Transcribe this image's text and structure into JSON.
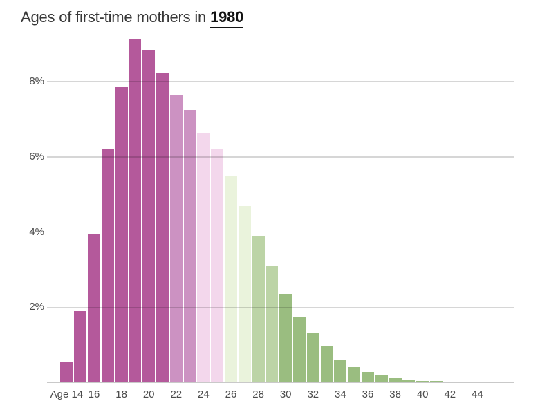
{
  "title": {
    "prefix": "Ages of first-time mothers in",
    "year": "1980"
  },
  "colors": {
    "background": "#ffffff",
    "title_text": "#383838",
    "year_text": "#131313",
    "axis_text": "#4b4b4b",
    "gridline": "#d6d6d6",
    "baseline": "#c9c9c9"
  },
  "chart_data": {
    "type": "bar",
    "title": "Ages of first-time mothers in 1980",
    "x_axis_name": "Age",
    "ylim": [
      0,
      9.2
    ],
    "grid": true,
    "legend": false,
    "y_ticks": [
      {
        "value": 2,
        "label": "2%"
      },
      {
        "value": 4,
        "label": "4%"
      },
      {
        "value": 6,
        "label": "6%"
      },
      {
        "value": 8,
        "label": "8%"
      }
    ],
    "x_ticks": [
      {
        "age": 14,
        "label": "Age 14"
      },
      {
        "age": 16,
        "label": "16"
      },
      {
        "age": 18,
        "label": "18"
      },
      {
        "age": 20,
        "label": "20"
      },
      {
        "age": 22,
        "label": "22"
      },
      {
        "age": 24,
        "label": "24"
      },
      {
        "age": 26,
        "label": "26"
      },
      {
        "age": 28,
        "label": "28"
      },
      {
        "age": 30,
        "label": "30"
      },
      {
        "age": 32,
        "label": "32"
      },
      {
        "age": 34,
        "label": "34"
      },
      {
        "age": 36,
        "label": "36"
      },
      {
        "age": 38,
        "label": "38"
      },
      {
        "age": 40,
        "label": "40"
      },
      {
        "age": 42,
        "label": "42"
      },
      {
        "age": 44,
        "label": "44"
      }
    ],
    "color_groups": {
      "ages_14_21": "#b4599b",
      "ages_22_23": "#cc92c2",
      "ages_24_25": "#f3d7ec",
      "ages_26_27": "#eaf3dc",
      "ages_28_29": "#bcd4a6",
      "ages_30_plus": "#9abd80"
    },
    "bars": [
      {
        "age": 14,
        "value": 0.55,
        "color": "#b4599b"
      },
      {
        "age": 15,
        "value": 1.9,
        "color": "#b4599b"
      },
      {
        "age": 16,
        "value": 3.95,
        "color": "#b4599b"
      },
      {
        "age": 17,
        "value": 6.2,
        "color": "#b4599b"
      },
      {
        "age": 18,
        "value": 7.85,
        "color": "#b4599b"
      },
      {
        "age": 19,
        "value": 9.15,
        "color": "#b4599b"
      },
      {
        "age": 20,
        "value": 8.85,
        "color": "#b4599b"
      },
      {
        "age": 21,
        "value": 8.25,
        "color": "#b4599b"
      },
      {
        "age": 22,
        "value": 7.65,
        "color": "#cc92c2"
      },
      {
        "age": 23,
        "value": 7.25,
        "color": "#cc92c2"
      },
      {
        "age": 24,
        "value": 6.65,
        "color": "#f3d7ec"
      },
      {
        "age": 25,
        "value": 6.2,
        "color": "#f3d7ec"
      },
      {
        "age": 26,
        "value": 5.5,
        "color": "#eaf3dc"
      },
      {
        "age": 27,
        "value": 4.7,
        "color": "#eaf3dc"
      },
      {
        "age": 28,
        "value": 3.9,
        "color": "#bcd4a6"
      },
      {
        "age": 29,
        "value": 3.1,
        "color": "#bcd4a6"
      },
      {
        "age": 30,
        "value": 2.35,
        "color": "#9abd80"
      },
      {
        "age": 31,
        "value": 1.75,
        "color": "#9abd80"
      },
      {
        "age": 32,
        "value": 1.3,
        "color": "#9abd80"
      },
      {
        "age": 33,
        "value": 0.95,
        "color": "#9abd80"
      },
      {
        "age": 34,
        "value": 0.6,
        "color": "#9abd80"
      },
      {
        "age": 35,
        "value": 0.4,
        "color": "#9abd80"
      },
      {
        "age": 36,
        "value": 0.27,
        "color": "#9abd80"
      },
      {
        "age": 37,
        "value": 0.18,
        "color": "#9abd80"
      },
      {
        "age": 38,
        "value": 0.12,
        "color": "#9abd80"
      },
      {
        "age": 39,
        "value": 0.06,
        "color": "#9abd80"
      },
      {
        "age": 40,
        "value": 0.04,
        "color": "#9abd80"
      },
      {
        "age": 41,
        "value": 0.03,
        "color": "#9abd80"
      },
      {
        "age": 42,
        "value": 0.02,
        "color": "#9abd80"
      },
      {
        "age": 43,
        "value": 0.01,
        "color": "#9abd80"
      }
    ]
  }
}
